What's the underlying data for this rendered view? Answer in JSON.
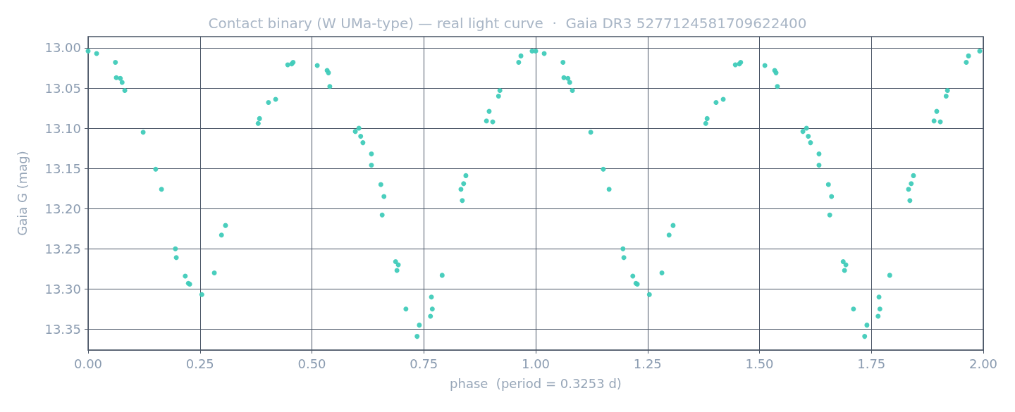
{
  "chart_data": {
    "type": "scatter",
    "title": "Contact binary (W UMa-type) — real light curve  ·  Gaia DR3 5277124581709622400",
    "xlabel": "phase  (period = 0.3253 d)",
    "ylabel": "Gaia G (mag)",
    "marker": "circle",
    "grid": true,
    "xlim": [
      0,
      2
    ],
    "xticks": [
      {
        "value": 0,
        "label": "0.00"
      },
      {
        "value": 0.25,
        "label": "0.25"
      },
      {
        "value": 0.5,
        "label": "0.50"
      },
      {
        "value": 0.75,
        "label": "0.75"
      },
      {
        "value": 1,
        "label": "1.00"
      },
      {
        "value": 1.25,
        "label": "1.25"
      },
      {
        "value": 1.5,
        "label": "1.50"
      },
      {
        "value": 1.75,
        "label": "1.75"
      },
      {
        "value": 2,
        "label": "2.00"
      }
    ],
    "ylim": [
      13.376,
      12.986
    ],
    "yticks": [
      {
        "value": 13,
        "label": "13.00"
      },
      {
        "value": 13.05,
        "label": "13.05"
      },
      {
        "value": 13.1,
        "label": "13.10"
      },
      {
        "value": 13.15,
        "label": "13.15"
      },
      {
        "value": 13.2,
        "label": "13.20"
      },
      {
        "value": 13.25,
        "label": "13.25"
      },
      {
        "value": 13.3,
        "label": "13.30"
      },
      {
        "value": 13.35,
        "label": "13.35"
      }
    ],
    "series": [
      {
        "color": "#40cbb9",
        "x": [
          0,
          0.019,
          0.061,
          0.063,
          0.072,
          0.076,
          0.082,
          0.123,
          0.151,
          0.164,
          0.195,
          0.197,
          0.217,
          0.224,
          0.227,
          0.254,
          0.282,
          0.298,
          0.307,
          0.38,
          0.383,
          0.403,
          0.419,
          0.446,
          0.455,
          0.458,
          0.512,
          0.534,
          0.537,
          0.54,
          0.597,
          0.605,
          0.609,
          0.614,
          0.633,
          0.633,
          0.654,
          0.661,
          0.657,
          0.687,
          0.693,
          0.69,
          0.71,
          0.74,
          0.735,
          0.767,
          0.769,
          0.765,
          0.791,
          0.833,
          0.836,
          0.839,
          0.844,
          0.89,
          0.904,
          0.896,
          0.917,
          0.92,
          0.962,
          0.967,
          0.992,
          1,
          1.019,
          1.061,
          1.063,
          1.072,
          1.076,
          1.082,
          1.123,
          1.151,
          1.164,
          1.195,
          1.197,
          1.217,
          1.224,
          1.227,
          1.254,
          1.282,
          1.298,
          1.307,
          1.38,
          1.383,
          1.403,
          1.419,
          1.446,
          1.455,
          1.458,
          1.512,
          1.534,
          1.537,
          1.54,
          1.597,
          1.605,
          1.609,
          1.614,
          1.633,
          1.633,
          1.654,
          1.661,
          1.657,
          1.687,
          1.693,
          1.69,
          1.71,
          1.74,
          1.735,
          1.767,
          1.769,
          1.765,
          1.791,
          1.833,
          1.836,
          1.839,
          1.844,
          1.89,
          1.904,
          1.896,
          1.917,
          1.92,
          1.962,
          1.967,
          1.992
        ],
        "values": [
          13.004,
          13.007,
          13.018,
          13.037,
          13.038,
          13.043,
          13.053,
          13.105,
          13.151,
          13.176,
          13.25,
          13.261,
          13.284,
          13.293,
          13.294,
          13.307,
          13.28,
          13.233,
          13.221,
          13.094,
          13.088,
          13.068,
          13.064,
          13.021,
          13.02,
          13.018,
          13.022,
          13.028,
          13.031,
          13.048,
          13.104,
          13.1,
          13.11,
          13.118,
          13.132,
          13.146,
          13.17,
          13.185,
          13.208,
          13.266,
          13.27,
          13.277,
          13.325,
          13.345,
          13.359,
          13.31,
          13.325,
          13.334,
          13.283,
          13.176,
          13.19,
          13.169,
          13.159,
          13.091,
          13.092,
          13.079,
          13.06,
          13.053,
          13.018,
          13.01,
          13.004,
          13.004,
          13.007,
          13.018,
          13.037,
          13.038,
          13.043,
          13.053,
          13.105,
          13.151,
          13.176,
          13.25,
          13.261,
          13.284,
          13.293,
          13.294,
          13.307,
          13.28,
          13.233,
          13.221,
          13.094,
          13.088,
          13.068,
          13.064,
          13.021,
          13.02,
          13.018,
          13.022,
          13.028,
          13.031,
          13.048,
          13.104,
          13.1,
          13.11,
          13.118,
          13.132,
          13.146,
          13.17,
          13.185,
          13.208,
          13.266,
          13.27,
          13.277,
          13.325,
          13.345,
          13.359,
          13.31,
          13.325,
          13.334,
          13.283,
          13.176,
          13.19,
          13.169,
          13.159,
          13.091,
          13.092,
          13.079,
          13.06,
          13.053,
          13.018,
          13.01,
          13.004
        ]
      }
    ]
  }
}
